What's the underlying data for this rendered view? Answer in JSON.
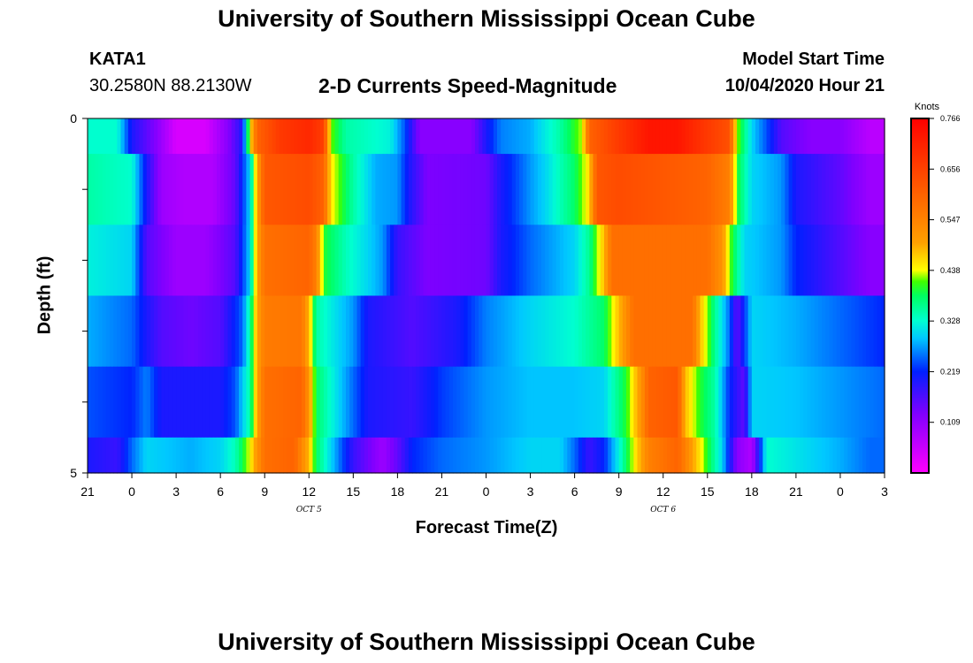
{
  "header": {
    "title": "University of Southern Mississippi Ocean Cube",
    "station_id": "KATA1",
    "station_coords": "30.2580N 88.2130W",
    "model_start_label": "Model Start Time",
    "model_start_value": "10/04/2020 Hour 21"
  },
  "footer": {
    "title": "University of Southern Mississippi Ocean Cube"
  },
  "chart_data": {
    "type": "heatmap",
    "title": "2-D Currents Speed-Magnitude",
    "xlabel": "Forecast Time(Z)",
    "ylabel": "Depth (ft)",
    "x_tick_labels": [
      "21",
      "0",
      "3",
      "6",
      "9",
      "12",
      "15",
      "18",
      "21",
      "0",
      "3",
      "6",
      "9",
      "12",
      "15",
      "18",
      "21",
      "0",
      "3"
    ],
    "x_range_hours": [
      0,
      54
    ],
    "date_labels": [
      {
        "text": "OCT 5",
        "hour": 15
      },
      {
        "text": "OCT 6",
        "hour": 39
      }
    ],
    "y_tick_labels": [
      "0",
      "5"
    ],
    "ylim": [
      0,
      5
    ],
    "colorbar": {
      "title": "Knots",
      "range": [
        0.0,
        0.766
      ],
      "tick_labels": [
        "0.766",
        "0.656",
        "0.547",
        "0.438",
        "0.328",
        "0.219",
        "0.109"
      ]
    },
    "layers": [
      {
        "depth_range": [
          0.0,
          0.5
        ],
        "keyframes": [
          [
            0,
            0.33
          ],
          [
            2,
            0.33
          ],
          [
            3,
            0.2
          ],
          [
            4.5,
            0.13
          ],
          [
            6,
            0.04
          ],
          [
            8,
            0.04
          ],
          [
            9.5,
            0.12
          ],
          [
            10.5,
            0.2
          ],
          [
            11,
            0.45
          ],
          [
            11.5,
            0.6
          ],
          [
            13,
            0.67
          ],
          [
            15,
            0.7
          ],
          [
            16,
            0.66
          ],
          [
            16.5,
            0.42
          ],
          [
            17.5,
            0.35
          ],
          [
            20.5,
            0.32
          ],
          [
            21.5,
            0.24
          ],
          [
            22.5,
            0.12
          ],
          [
            26,
            0.12
          ],
          [
            27,
            0.2
          ],
          [
            28,
            0.26
          ],
          [
            30,
            0.28
          ],
          [
            32,
            0.35
          ],
          [
            33.5,
            0.43
          ],
          [
            34,
            0.6
          ],
          [
            36,
            0.67
          ],
          [
            38,
            0.73
          ],
          [
            40,
            0.73
          ],
          [
            42,
            0.67
          ],
          [
            43.5,
            0.63
          ],
          [
            44,
            0.43
          ],
          [
            45,
            0.3
          ],
          [
            46,
            0.24
          ],
          [
            47,
            0.16
          ],
          [
            49,
            0.12
          ],
          [
            51,
            0.12
          ],
          [
            53,
            0.07
          ],
          [
            54,
            0.07
          ]
        ]
      },
      {
        "depth_range": [
          0.5,
          1.5
        ],
        "keyframes": [
          [
            0,
            0.35
          ],
          [
            3,
            0.33
          ],
          [
            4,
            0.2
          ],
          [
            5,
            0.1
          ],
          [
            6.5,
            0.08
          ],
          [
            8.5,
            0.08
          ],
          [
            10,
            0.15
          ],
          [
            11,
            0.3
          ],
          [
            11.5,
            0.5
          ],
          [
            12,
            0.62
          ],
          [
            15,
            0.64
          ],
          [
            16,
            0.6
          ],
          [
            16.5,
            0.45
          ],
          [
            18,
            0.35
          ],
          [
            19.5,
            0.28
          ],
          [
            21,
            0.27
          ],
          [
            21.8,
            0.2
          ],
          [
            23,
            0.13
          ],
          [
            27,
            0.14
          ],
          [
            28,
            0.2
          ],
          [
            30,
            0.27
          ],
          [
            31,
            0.3
          ],
          [
            33,
            0.38
          ],
          [
            34,
            0.46
          ],
          [
            34.5,
            0.62
          ],
          [
            36,
            0.64
          ],
          [
            42,
            0.6
          ],
          [
            43.5,
            0.55
          ],
          [
            44,
            0.4
          ],
          [
            45,
            0.3
          ],
          [
            47,
            0.27
          ],
          [
            48,
            0.2
          ],
          [
            51,
            0.15
          ],
          [
            53,
            0.1
          ],
          [
            54,
            0.1
          ]
        ]
      },
      {
        "depth_range": [
          1.5,
          2.5
        ],
        "keyframes": [
          [
            0,
            0.32
          ],
          [
            3,
            0.3
          ],
          [
            4,
            0.16
          ],
          [
            6,
            0.1
          ],
          [
            8,
            0.1
          ],
          [
            10,
            0.16
          ],
          [
            11,
            0.3
          ],
          [
            11.5,
            0.5
          ],
          [
            12,
            0.58
          ],
          [
            15,
            0.6
          ],
          [
            15.5,
            0.55
          ],
          [
            16,
            0.4
          ],
          [
            17.5,
            0.34
          ],
          [
            19,
            0.3
          ],
          [
            20,
            0.27
          ],
          [
            21,
            0.18
          ],
          [
            23,
            0.13
          ],
          [
            27,
            0.14
          ],
          [
            28,
            0.2
          ],
          [
            30,
            0.25
          ],
          [
            33,
            0.3
          ],
          [
            34,
            0.36
          ],
          [
            35,
            0.48
          ],
          [
            35.5,
            0.58
          ],
          [
            42,
            0.58
          ],
          [
            43,
            0.52
          ],
          [
            43.5,
            0.42
          ],
          [
            44.5,
            0.3
          ],
          [
            47,
            0.27
          ],
          [
            48,
            0.22
          ],
          [
            51,
            0.16
          ],
          [
            53,
            0.12
          ],
          [
            54,
            0.12
          ]
        ]
      },
      {
        "depth_range": [
          2.5,
          3.5
        ],
        "keyframes": [
          [
            0,
            0.28
          ],
          [
            3,
            0.25
          ],
          [
            4,
            0.2
          ],
          [
            5,
            0.16
          ],
          [
            7,
            0.14
          ],
          [
            9,
            0.16
          ],
          [
            10.5,
            0.25
          ],
          [
            11,
            0.35
          ],
          [
            11.5,
            0.5
          ],
          [
            12,
            0.56
          ],
          [
            14.5,
            0.57
          ],
          [
            15,
            0.48
          ],
          [
            15.5,
            0.35
          ],
          [
            17,
            0.3
          ],
          [
            18,
            0.27
          ],
          [
            19,
            0.2
          ],
          [
            22,
            0.16
          ],
          [
            25,
            0.2
          ],
          [
            27,
            0.26
          ],
          [
            30,
            0.3
          ],
          [
            33,
            0.33
          ],
          [
            35,
            0.38
          ],
          [
            36,
            0.48
          ],
          [
            37,
            0.58
          ],
          [
            41,
            0.58
          ],
          [
            41.5,
            0.48
          ],
          [
            42.5,
            0.36
          ],
          [
            43.5,
            0.25
          ],
          [
            44,
            0.15
          ],
          [
            45,
            0.3
          ],
          [
            48,
            0.28
          ],
          [
            51,
            0.25
          ],
          [
            54,
            0.22
          ]
        ]
      },
      {
        "depth_range": [
          3.5,
          4.5
        ],
        "keyframes": [
          [
            0,
            0.24
          ],
          [
            3,
            0.22
          ],
          [
            4,
            0.26
          ],
          [
            5,
            0.2
          ],
          [
            7,
            0.2
          ],
          [
            9,
            0.2
          ],
          [
            10,
            0.24
          ],
          [
            11,
            0.35
          ],
          [
            11.5,
            0.5
          ],
          [
            12,
            0.58
          ],
          [
            14.5,
            0.6
          ],
          [
            15,
            0.52
          ],
          [
            15.5,
            0.38
          ],
          [
            17,
            0.3
          ],
          [
            18,
            0.25
          ],
          [
            19,
            0.2
          ],
          [
            22,
            0.18
          ],
          [
            24,
            0.23
          ],
          [
            27,
            0.27
          ],
          [
            30,
            0.29
          ],
          [
            33,
            0.29
          ],
          [
            35,
            0.3
          ],
          [
            36.5,
            0.4
          ],
          [
            37.5,
            0.52
          ],
          [
            38,
            0.6
          ],
          [
            40,
            0.62
          ],
          [
            40.5,
            0.48
          ],
          [
            41.5,
            0.4
          ],
          [
            42.5,
            0.35
          ],
          [
            43.5,
            0.22
          ],
          [
            44.5,
            0.15
          ],
          [
            45,
            0.3
          ],
          [
            48,
            0.29
          ],
          [
            51,
            0.27
          ],
          [
            54,
            0.25
          ]
        ]
      },
      {
        "depth_range": [
          4.5,
          5.0
        ],
        "keyframes": [
          [
            0,
            0.2
          ],
          [
            2,
            0.18
          ],
          [
            3,
            0.25
          ],
          [
            4,
            0.3
          ],
          [
            7,
            0.28
          ],
          [
            9,
            0.3
          ],
          [
            10,
            0.34
          ],
          [
            11,
            0.44
          ],
          [
            11.5,
            0.52
          ],
          [
            12,
            0.58
          ],
          [
            14,
            0.6
          ],
          [
            15,
            0.48
          ],
          [
            15.5,
            0.38
          ],
          [
            16.5,
            0.3
          ],
          [
            18,
            0.18
          ],
          [
            20,
            0.1
          ],
          [
            21,
            0.15
          ],
          [
            22,
            0.22
          ],
          [
            24,
            0.25
          ],
          [
            27,
            0.27
          ],
          [
            30,
            0.3
          ],
          [
            32,
            0.3
          ],
          [
            33,
            0.25
          ],
          [
            34,
            0.18
          ],
          [
            35,
            0.22
          ],
          [
            36,
            0.32
          ],
          [
            37,
            0.44
          ],
          [
            38,
            0.55
          ],
          [
            40,
            0.6
          ],
          [
            41,
            0.5
          ],
          [
            42,
            0.4
          ],
          [
            43,
            0.3
          ],
          [
            44,
            0.12
          ],
          [
            45,
            0.08
          ],
          [
            46,
            0.33
          ],
          [
            49,
            0.3
          ],
          [
            51,
            0.28
          ],
          [
            53,
            0.25
          ],
          [
            54,
            0.25
          ]
        ]
      }
    ]
  }
}
